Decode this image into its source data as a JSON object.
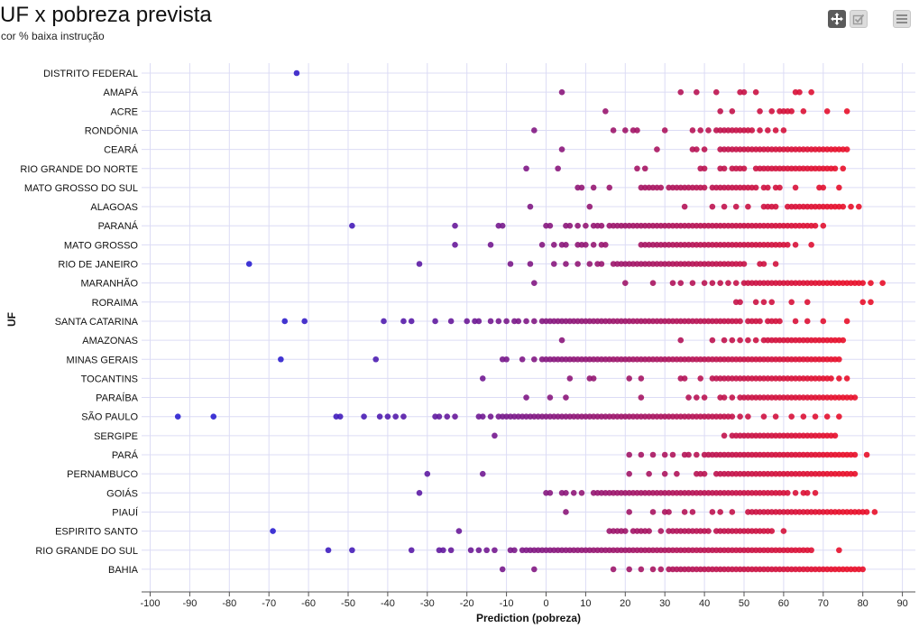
{
  "header": {
    "title": "UF x pobreza prevista",
    "subtitle": "cor % baixa instrução"
  },
  "toolbar": [
    {
      "name": "pan-tool",
      "icon": "move-arrows-icon"
    },
    {
      "name": "select-tool",
      "icon": "checkbox-check-icon"
    },
    {
      "name": "menu",
      "icon": "hamburger-menu-icon"
    }
  ],
  "colors": {
    "low": "#2a1fd0",
    "high": "#e8102a",
    "grid": "#dcdcf5"
  },
  "chart_data": {
    "type": "scatter",
    "xlabel": "Prediction (pobreza)",
    "ylabel": "UF",
    "xlim": [
      -100,
      90
    ],
    "xticks": [
      -100,
      -90,
      -80,
      -70,
      -60,
      -50,
      -40,
      -30,
      -20,
      -10,
      0,
      10,
      20,
      30,
      40,
      50,
      60,
      70,
      80,
      90
    ],
    "grid": true,
    "legend": "none",
    "categories": [
      "DISTRITO FEDERAL",
      "AMAPÁ",
      "ACRE",
      "RONDÔNIA",
      "CEARÁ",
      "RIO GRANDE DO NORTE",
      "MATO GROSSO DO SUL",
      "ALAGOAS",
      "PARANÁ",
      "MATO GROSSO",
      "RIO DE JANEIRO",
      "MARANHÃO",
      "RORAIMA",
      "SANTA CATARINA",
      "AMAZONAS",
      "MINAS GERAIS",
      "TOCANTINS",
      "PARAÍBA",
      "SÃO PAULO",
      "SERGIPE",
      "PARÁ",
      "PERNAMBUCO",
      "GOIÁS",
      "PIAUÍ",
      "ESPIRITO SANTO",
      "RIO GRANDE DO SUL",
      "BAHIA"
    ],
    "points": [
      {
        "uf": "DISTRITO FEDERAL",
        "x": [
          -63
        ]
      },
      {
        "uf": "AMAPÁ",
        "x": [
          4,
          34,
          38,
          43,
          49,
          50,
          53,
          63,
          64,
          67
        ]
      },
      {
        "uf": "ACRE",
        "x": [
          15,
          44,
          47,
          54,
          57,
          59,
          60,
          61,
          62,
          65,
          71,
          76
        ]
      },
      {
        "uf": "RONDÔNIA",
        "x": [
          -3,
          17,
          20,
          22,
          23,
          30,
          37,
          39,
          41,
          43,
          44,
          45,
          46,
          47,
          48,
          49,
          50,
          51,
          52,
          54,
          56,
          58,
          60
        ]
      },
      {
        "uf": "CEARÁ",
        "x": [
          4,
          28,
          37,
          38,
          40,
          44,
          45,
          46,
          47,
          48,
          49,
          50,
          51,
          52,
          53,
          54,
          55,
          56,
          57,
          58,
          59,
          60,
          61,
          62,
          63,
          64,
          65,
          66,
          67,
          68,
          69,
          70,
          71,
          72,
          73,
          74,
          75,
          76
        ]
      },
      {
        "uf": "RIO GRANDE DO NORTE",
        "x": [
          -5,
          3,
          23,
          25,
          39,
          40,
          44,
          45,
          47,
          48,
          49,
          50,
          53,
          54,
          55,
          56,
          57,
          58,
          59,
          60,
          61,
          62,
          63,
          64,
          65,
          66,
          67,
          68,
          69,
          70,
          71,
          72,
          73,
          75
        ]
      },
      {
        "uf": "MATO GROSSO DO SUL",
        "x": [
          8,
          9,
          12,
          16,
          24,
          25,
          26,
          27,
          28,
          29,
          31,
          32,
          33,
          34,
          35,
          36,
          37,
          38,
          39,
          40,
          42,
          43,
          44,
          45,
          46,
          47,
          48,
          49,
          50,
          51,
          52,
          53,
          55,
          56,
          58,
          59,
          63,
          69,
          70,
          74
        ]
      },
      {
        "uf": "ALAGOAS",
        "x": [
          -4,
          11,
          35,
          42,
          45,
          48,
          51,
          55,
          56,
          57,
          58,
          61,
          62,
          63,
          64,
          65,
          66,
          67,
          68,
          69,
          70,
          71,
          72,
          73,
          74,
          75,
          77,
          79
        ]
      },
      {
        "uf": "PARANÁ",
        "x": [
          -49,
          -23,
          -12,
          -11,
          0,
          1,
          5,
          6,
          8,
          10,
          12,
          13,
          14,
          16,
          17,
          18,
          19,
          20,
          21,
          22,
          23,
          24,
          25,
          26,
          27,
          28,
          29,
          30,
          31,
          32,
          33,
          34,
          35,
          36,
          37,
          38,
          39,
          40,
          41,
          42,
          43,
          44,
          45,
          46,
          47,
          48,
          49,
          50,
          51,
          52,
          53,
          54,
          55,
          56,
          57,
          58,
          59,
          60,
          61,
          62,
          63,
          64,
          65,
          66,
          67,
          68,
          70
        ]
      },
      {
        "uf": "MATO GROSSO",
        "x": [
          -23,
          -14,
          -1,
          2,
          4,
          5,
          8,
          9,
          10,
          12,
          14,
          15,
          24,
          25,
          26,
          27,
          28,
          29,
          30,
          31,
          32,
          33,
          34,
          35,
          36,
          37,
          38,
          39,
          40,
          41,
          42,
          43,
          44,
          45,
          46,
          47,
          48,
          49,
          50,
          51,
          52,
          53,
          54,
          55,
          56,
          57,
          58,
          59,
          60,
          61,
          63,
          67
        ]
      },
      {
        "uf": "RIO DE JANEIRO",
        "x": [
          -75,
          -32,
          -9,
          -4,
          2,
          5,
          8,
          11,
          13,
          14,
          17,
          18,
          19,
          20,
          21,
          22,
          23,
          24,
          25,
          26,
          27,
          28,
          29,
          30,
          31,
          32,
          33,
          34,
          35,
          36,
          37,
          38,
          39,
          40,
          41,
          42,
          43,
          44,
          45,
          46,
          47,
          48,
          49,
          50,
          54,
          55,
          58
        ]
      },
      {
        "uf": "MARANHÃO",
        "x": [
          -3,
          20,
          27,
          32,
          34,
          37,
          40,
          42,
          44,
          46,
          48,
          50,
          51,
          52,
          53,
          54,
          55,
          56,
          57,
          58,
          59,
          60,
          61,
          62,
          63,
          64,
          65,
          66,
          67,
          68,
          69,
          70,
          71,
          72,
          73,
          74,
          75,
          76,
          77,
          78,
          79,
          80,
          82,
          85
        ]
      },
      {
        "uf": "RORAIMA",
        "x": [
          48,
          49,
          53,
          55,
          57,
          62,
          66,
          80,
          82
        ]
      },
      {
        "uf": "SANTA CATARINA",
        "x": [
          -66,
          -61,
          -41,
          -36,
          -34,
          -28,
          -24,
          -20,
          -18,
          -17,
          -14,
          -12,
          -10,
          -8,
          -7,
          -5,
          -3,
          -1,
          0,
          1,
          2,
          3,
          4,
          5,
          6,
          7,
          8,
          9,
          10,
          11,
          12,
          13,
          14,
          15,
          16,
          17,
          18,
          19,
          20,
          21,
          22,
          23,
          24,
          25,
          26,
          27,
          28,
          29,
          30,
          31,
          32,
          33,
          34,
          35,
          36,
          37,
          38,
          39,
          40,
          41,
          42,
          43,
          44,
          45,
          46,
          47,
          48,
          49,
          51,
          52,
          53,
          54,
          56,
          57,
          58,
          59,
          63,
          66,
          70,
          76
        ]
      },
      {
        "uf": "AMAZONAS",
        "x": [
          4,
          34,
          42,
          45,
          47,
          49,
          51,
          53,
          55,
          56,
          57,
          58,
          59,
          60,
          61,
          62,
          63,
          64,
          65,
          66,
          67,
          68,
          69,
          70,
          71,
          72,
          73,
          74,
          75
        ]
      },
      {
        "uf": "MINAS GERAIS",
        "x": [
          -67,
          -43,
          -11,
          -10,
          -6,
          -3,
          -1,
          0,
          1,
          2,
          3,
          4,
          5,
          6,
          7,
          8,
          9,
          10,
          11,
          12,
          13,
          14,
          15,
          16,
          17,
          18,
          19,
          20,
          21,
          22,
          23,
          24,
          25,
          26,
          27,
          28,
          29,
          30,
          31,
          32,
          33,
          34,
          35,
          36,
          37,
          38,
          39,
          40,
          41,
          42,
          43,
          44,
          45,
          46,
          47,
          48,
          49,
          50,
          51,
          52,
          53,
          54,
          55,
          56,
          57,
          58,
          59,
          60,
          61,
          62,
          63,
          64,
          65,
          66,
          67,
          68,
          69,
          70,
          71,
          72,
          73,
          74
        ]
      },
      {
        "uf": "TOCANTINS",
        "x": [
          -16,
          6,
          11,
          12,
          21,
          24,
          34,
          35,
          39,
          42,
          43,
          44,
          45,
          46,
          47,
          48,
          49,
          50,
          51,
          52,
          53,
          54,
          55,
          56,
          57,
          58,
          59,
          60,
          61,
          62,
          63,
          64,
          65,
          66,
          67,
          68,
          69,
          70,
          71,
          72,
          74,
          76
        ]
      },
      {
        "uf": "PARAÍBA",
        "x": [
          -5,
          1,
          5,
          24,
          36,
          38,
          40,
          44,
          45,
          47,
          49,
          50,
          51,
          52,
          53,
          54,
          55,
          56,
          57,
          58,
          59,
          60,
          61,
          62,
          63,
          64,
          65,
          66,
          67,
          68,
          69,
          70,
          71,
          72,
          73,
          74,
          75,
          76,
          77,
          78
        ]
      },
      {
        "uf": "SÃO PAULO",
        "x": [
          -93,
          -84,
          -53,
          -52,
          -46,
          -42,
          -40,
          -38,
          -36,
          -28,
          -27,
          -25,
          -23,
          -17,
          -16,
          -14,
          -12,
          -11,
          -10,
          -9,
          -8,
          -7,
          -6,
          -5,
          -4,
          -3,
          -2,
          -1,
          0,
          1,
          2,
          3,
          4,
          5,
          6,
          7,
          8,
          9,
          10,
          11,
          12,
          13,
          14,
          15,
          16,
          17,
          18,
          19,
          20,
          21,
          22,
          23,
          24,
          25,
          26,
          27,
          28,
          29,
          30,
          31,
          32,
          33,
          34,
          35,
          36,
          37,
          38,
          39,
          40,
          41,
          42,
          43,
          44,
          45,
          46,
          47,
          49,
          51,
          55,
          58,
          62,
          65,
          68,
          71,
          74
        ]
      },
      {
        "uf": "SERGIPE",
        "x": [
          -13,
          45,
          47,
          48,
          49,
          50,
          51,
          52,
          53,
          54,
          55,
          56,
          57,
          58,
          59,
          60,
          61,
          62,
          63,
          64,
          65,
          66,
          67,
          68,
          69,
          70,
          71,
          72,
          73
        ]
      },
      {
        "uf": "PARÁ",
        "x": [
          21,
          24,
          27,
          30,
          32,
          35,
          36,
          38,
          40,
          41,
          42,
          43,
          44,
          45,
          46,
          47,
          48,
          49,
          50,
          51,
          52,
          53,
          54,
          55,
          56,
          57,
          58,
          59,
          60,
          61,
          62,
          63,
          64,
          65,
          66,
          67,
          68,
          69,
          70,
          71,
          72,
          73,
          74,
          75,
          76,
          77,
          78,
          81
        ]
      },
      {
        "uf": "PERNAMBUCO",
        "x": [
          -30,
          -16,
          21,
          26,
          30,
          33,
          38,
          39,
          40,
          43,
          44,
          45,
          46,
          47,
          48,
          49,
          50,
          51,
          52,
          53,
          54,
          55,
          56,
          57,
          58,
          59,
          60,
          61,
          62,
          63,
          64,
          65,
          66,
          67,
          68,
          69,
          70,
          71,
          72,
          73,
          74,
          75,
          76,
          77,
          78
        ]
      },
      {
        "uf": "GOIÁS",
        "x": [
          -32,
          0,
          1,
          4,
          5,
          7,
          9,
          12,
          13,
          14,
          15,
          16,
          17,
          18,
          19,
          20,
          21,
          22,
          23,
          24,
          25,
          26,
          27,
          28,
          29,
          30,
          31,
          32,
          33,
          34,
          35,
          36,
          37,
          38,
          39,
          40,
          41,
          42,
          43,
          44,
          45,
          46,
          47,
          48,
          49,
          50,
          51,
          52,
          53,
          54,
          55,
          56,
          57,
          58,
          59,
          60,
          61,
          63,
          65,
          66,
          68
        ]
      },
      {
        "uf": "PIAUÍ",
        "x": [
          5,
          21,
          27,
          30,
          31,
          35,
          37,
          42,
          44,
          47,
          51,
          52,
          53,
          54,
          55,
          56,
          57,
          58,
          59,
          60,
          61,
          62,
          63,
          64,
          65,
          66,
          67,
          68,
          69,
          70,
          71,
          72,
          73,
          74,
          75,
          76,
          77,
          78,
          79,
          80,
          81,
          83
        ]
      },
      {
        "uf": "ESPIRITO SANTO",
        "x": [
          -69,
          -22,
          16,
          17,
          18,
          19,
          20,
          22,
          23,
          24,
          25,
          26,
          29,
          31,
          32,
          33,
          34,
          35,
          36,
          37,
          38,
          39,
          40,
          41,
          43,
          44,
          45,
          46,
          47,
          48,
          49,
          50,
          51,
          52,
          53,
          54,
          55,
          56,
          57,
          60
        ]
      },
      {
        "uf": "RIO GRANDE DO SUL",
        "x": [
          -55,
          -49,
          -34,
          -27,
          -26,
          -24,
          -19,
          -17,
          -15,
          -13,
          -9,
          -8,
          -6,
          -5,
          -4,
          -3,
          -2,
          -1,
          0,
          1,
          2,
          3,
          4,
          5,
          6,
          7,
          8,
          9,
          10,
          11,
          12,
          13,
          14,
          15,
          16,
          17,
          18,
          19,
          20,
          21,
          22,
          23,
          24,
          25,
          26,
          27,
          28,
          29,
          30,
          31,
          32,
          33,
          34,
          35,
          36,
          37,
          38,
          39,
          40,
          41,
          42,
          43,
          44,
          45,
          46,
          47,
          48,
          49,
          50,
          51,
          52,
          53,
          54,
          55,
          56,
          57,
          58,
          59,
          60,
          61,
          62,
          63,
          64,
          65,
          66,
          67,
          74
        ]
      },
      {
        "uf": "BAHIA",
        "x": [
          -11,
          -3,
          17,
          21,
          24,
          27,
          29,
          31,
          32,
          33,
          34,
          35,
          36,
          37,
          38,
          39,
          40,
          41,
          42,
          43,
          44,
          45,
          46,
          47,
          48,
          49,
          50,
          51,
          52,
          53,
          54,
          55,
          56,
          57,
          58,
          59,
          60,
          61,
          62,
          63,
          64,
          65,
          66,
          67,
          68,
          69,
          70,
          71,
          72,
          73,
          74,
          75,
          76,
          77,
          78,
          79,
          80
        ]
      }
    ]
  }
}
